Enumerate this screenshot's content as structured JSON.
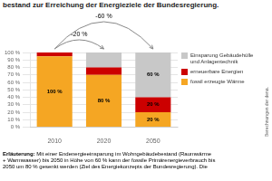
{
  "chart_data": {
    "type": "bar",
    "title": "bestand zur Erreichung der Energieziele der Bundesregierung.",
    "categories": [
      "2010",
      "2020",
      "2050"
    ],
    "series": [
      {
        "name": "fossil erzeugte Wärme",
        "color": "#F5A623",
        "values": [
          95,
          70,
          20
        ]
      },
      {
        "name": "erneuerbare Energien",
        "color": "#CC0000",
        "values": [
          5,
          10,
          20
        ]
      },
      {
        "name": "Einsparung Gebäudehülle\nund Anlagentechnik",
        "color": "#C8C8C8",
        "values": [
          0,
          20,
          60
        ]
      }
    ],
    "stacked": true,
    "ylim": [
      0,
      100
    ],
    "yticks": [
      {
        "value": 0,
        "label": "0 %"
      },
      {
        "value": 10,
        "label": "10 %"
      },
      {
        "value": 20,
        "label": "20 %"
      },
      {
        "value": 30,
        "label": "30 %"
      },
      {
        "value": 40,
        "label": "40 %"
      },
      {
        "value": 50,
        "label": "50 %"
      },
      {
        "value": 60,
        "label": "60 %"
      },
      {
        "value": 70,
        "label": "70 %"
      },
      {
        "value": 80,
        "label": "80 %"
      },
      {
        "value": 90,
        "label": "90 %"
      },
      {
        "value": 100,
        "label": "100 %"
      }
    ],
    "grid": true,
    "legend": "right",
    "annotations": [
      {
        "text": "100 %",
        "x": "2010",
        "y": 48
      },
      {
        "text": "80 %",
        "x": "2020",
        "y": 35
      },
      {
        "text": "60 %",
        "x": "2050",
        "y": 70
      },
      {
        "text": "20 %",
        "x": "2050",
        "y": 30
      },
      {
        "text": "20 %",
        "x": "2050",
        "y": 10
      },
      {
        "text": "-20 %",
        "from": "2010",
        "to": "2020"
      },
      {
        "text": "-60 %",
        "from": "2010",
        "to": "2050"
      }
    ],
    "source": "Berechnungen der dena.",
    "footnote": {
      "bold": "Erläuterung:",
      "text": " Mit einer Endenergieeinsparung im Wohngebäudebestand (Raumwärme\n+ Warmwasser) bis 2050 in Höhe von 60 % kann der fossile Primärenergieverbrauch bis\n2050 um 80 % gesenkt werden (Ziel des Energiekonzepts der Bundesregierung). Die"
    }
  }
}
